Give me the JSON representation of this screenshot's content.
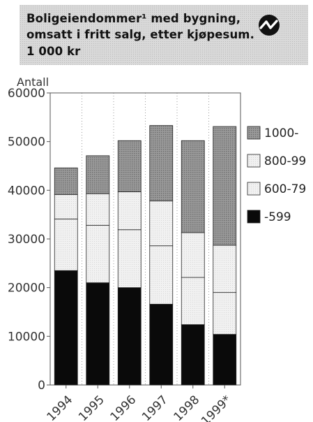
{
  "title": {
    "line1": "Boligeiendommer¹ med bygning,",
    "line2": "omsatt i fritt salg, etter kjøpesum.",
    "line3": "1 000 kr"
  },
  "logo": {
    "icon": "ssb-logo-icon"
  },
  "colors": {
    "title_bg": "#d9d9d9",
    "series": [
      "#0a0a0a",
      "#eeeeee",
      "#f5f5f5",
      "#8c8c8c"
    ]
  },
  "chart_data": {
    "type": "bar",
    "stacked": true,
    "title": "Boligeiendommer¹ med bygning, omsatt i fritt salg, etter kjøpesum. 1 000 kr",
    "ylabel": "Antall",
    "xlabel": "",
    "ylim": [
      0,
      60000
    ],
    "yticks": [
      "0",
      "10000",
      "20000",
      "30000",
      "40000",
      "50000",
      "60000"
    ],
    "yticks_values": [
      0,
      10000,
      20000,
      30000,
      40000,
      50000,
      60000
    ],
    "grid": "vertical-dotted",
    "legend_position": "right",
    "categories": [
      "1994",
      "1995",
      "1996",
      "1997",
      "1998",
      "1999*"
    ],
    "series": [
      {
        "name": "-599",
        "values": [
          23500,
          21000,
          20000,
          16600,
          12400,
          10400
        ]
      },
      {
        "name": "600-79",
        "values": [
          10600,
          11800,
          11900,
          12000,
          9700,
          8600
        ]
      },
      {
        "name": "800-99",
        "values": [
          5000,
          6500,
          7800,
          9200,
          9200,
          9700
        ]
      },
      {
        "name": "1000-",
        "values": [
          5500,
          7800,
          10500,
          15500,
          18900,
          24400
        ]
      }
    ],
    "legend_order": [
      3,
      2,
      1,
      0
    ]
  }
}
